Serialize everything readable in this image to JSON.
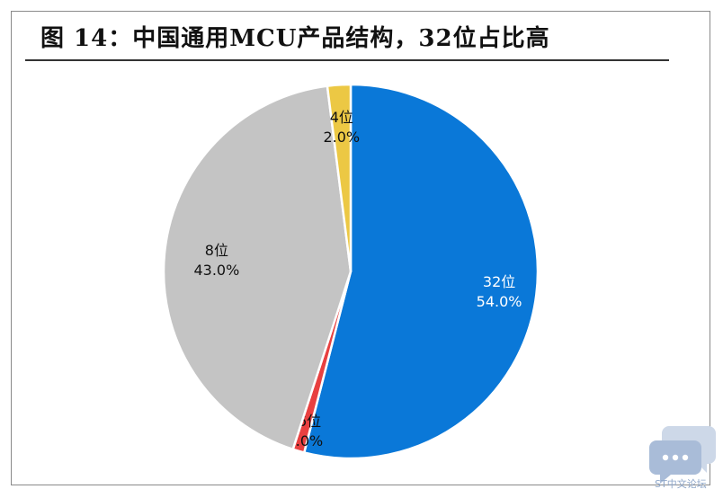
{
  "title": "图 14：中国通用MCU产品结构，32位占比高",
  "chart_data": {
    "type": "pie",
    "start_angle_deg": 0,
    "direction": "clockwise",
    "slices": [
      {
        "name": "32位",
        "percent_label": "54.0%",
        "value": 54.0,
        "color": "#0a78d8",
        "label_color": "#ffffff"
      },
      {
        "name": "16位",
        "percent_label": "1.0%",
        "value": 1.0,
        "color": "#e84040",
        "label_color": "#111111"
      },
      {
        "name": "8位",
        "percent_label": "43.0%",
        "value": 43.0,
        "color": "#c4c4c4",
        "label_color": "#111111"
      },
      {
        "name": "4位",
        "percent_label": "2.0%",
        "value": 2.0,
        "color": "#ecc844",
        "label_color": "#111111"
      }
    ]
  },
  "watermark": {
    "text": "ST中文论坛",
    "icon": "chat-bubbles-icon",
    "color": "#8fa7c9"
  }
}
